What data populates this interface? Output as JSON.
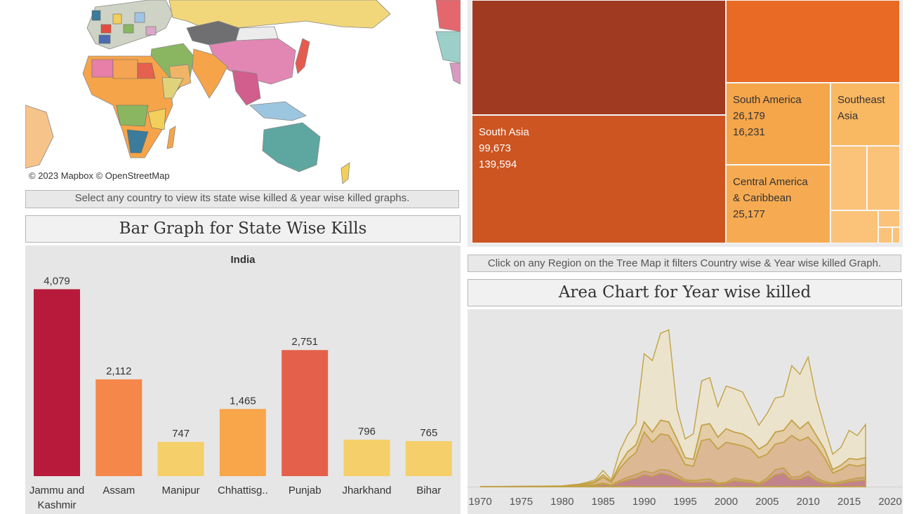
{
  "map": {
    "attribution": "© 2023 Mapbox  © OpenStreetMap"
  },
  "bar_note": "Select any country to view its state wise killed & year wise killed graphs.",
  "bar_title": "Bar Graph for State Wise Kills",
  "treemap": {
    "cells": [
      {
        "id": "top-left",
        "lines": [],
        "color": "#a03a20"
      },
      {
        "id": "top-right",
        "lines": [],
        "color": "#e96a24"
      },
      {
        "id": "south-asia",
        "lines": [
          "South Asia",
          "99,673",
          "139,594"
        ],
        "color": "#cc5522"
      },
      {
        "id": "south-america",
        "lines": [
          "South America",
          "26,179",
          "16,231"
        ],
        "color": "#f5a54a"
      },
      {
        "id": "southeast-asia",
        "lines": [
          "Southeast",
          "Asia"
        ],
        "color": "#f9b862"
      },
      {
        "id": "central-america",
        "lines": [
          "Central America",
          "& Caribbean",
          "25,177"
        ],
        "color": "#f6ab52"
      },
      {
        "id": "small-1",
        "lines": [],
        "color": "#fbc37a"
      },
      {
        "id": "small-2",
        "lines": [],
        "color": "#fbc37a"
      },
      {
        "id": "small-3",
        "lines": [],
        "color": "#fbc37a"
      },
      {
        "id": "small-4",
        "lines": [],
        "color": "#fbc37a"
      },
      {
        "id": "small-5",
        "lines": [],
        "color": "#fbc37a"
      },
      {
        "id": "small-6",
        "lines": [],
        "color": "#fbc37a"
      }
    ]
  },
  "treemap_note": "Click on any Region on the Tree Map it filters Country wise & Year wise killed Graph.",
  "area_title": "Area Chart for Year wise killed",
  "chart_data": [
    {
      "type": "bar",
      "title": "India",
      "categories": [
        "Jammu and Kashmir",
        "Assam",
        "Manipur",
        "Chhattisg..",
        "Punjab",
        "Jharkhand",
        "Bihar"
      ],
      "category_lines": [
        [
          "Jammu and",
          "Kashmir"
        ],
        [
          "Assam"
        ],
        [
          "Manipur"
        ],
        [
          "Chhattisg.."
        ],
        [
          "Punjab"
        ],
        [
          "Jharkhand"
        ],
        [
          "Bihar"
        ]
      ],
      "values": [
        4079,
        2112,
        747,
        1465,
        2751,
        796,
        765
      ],
      "value_labels": [
        "4,079",
        "2,112",
        "747",
        "1,465",
        "2,751",
        "796",
        "765"
      ],
      "colors": [
        "#b71a3b",
        "#f5874a",
        "#f4cf6a",
        "#f9a54a",
        "#e4604a",
        "#f4cf6a",
        "#f4cf6a"
      ],
      "ylim": [
        0,
        4300
      ],
      "grid": false
    },
    {
      "type": "area",
      "title": "",
      "xlabel": "",
      "ylabel": "",
      "xlim": [
        1970,
        2020
      ],
      "ylim": [
        0,
        1000
      ],
      "x_ticks": [
        1970,
        1975,
        1980,
        1985,
        1990,
        1995,
        2000,
        2005,
        2010,
        2015,
        2020
      ],
      "x": [
        1970,
        1975,
        1980,
        1981,
        1982,
        1983,
        1984,
        1985,
        1986,
        1987,
        1988,
        1989,
        1990,
        1991,
        1992,
        1993,
        1994,
        1995,
        1996,
        1997,
        1998,
        1999,
        2000,
        2001,
        2002,
        2003,
        2004,
        2005,
        2006,
        2007,
        2008,
        2009,
        2010,
        2011,
        2012,
        2013,
        2014,
        2015,
        2016,
        2017
      ],
      "series": [
        {
          "values": [
            0,
            2,
            5,
            10,
            15,
            25,
            40,
            95,
            40,
            205,
            305,
            370,
            780,
            740,
            900,
            920,
            460,
            280,
            310,
            620,
            640,
            470,
            590,
            575,
            555,
            460,
            360,
            430,
            520,
            530,
            710,
            660,
            760,
            520,
            350,
            190,
            230,
            330,
            300,
            365
          ]
        },
        {
          "values": [
            0,
            1,
            3,
            6,
            10,
            18,
            30,
            70,
            30,
            130,
            205,
            245,
            380,
            320,
            390,
            380,
            280,
            170,
            160,
            360,
            370,
            290,
            340,
            320,
            310,
            280,
            220,
            250,
            320,
            330,
            390,
            340,
            380,
            300,
            220,
            100,
            125,
            165,
            160,
            170
          ]
        },
        {
          "values": [
            0,
            1,
            2,
            4,
            8,
            14,
            25,
            55,
            25,
            105,
            160,
            200,
            320,
            260,
            310,
            300,
            220,
            130,
            120,
            270,
            280,
            220,
            260,
            250,
            240,
            220,
            170,
            190,
            250,
            260,
            300,
            270,
            290,
            240,
            170,
            80,
            100,
            130,
            120,
            130
          ]
        },
        {
          "values": [
            0,
            0,
            1,
            3,
            5,
            8,
            12,
            20,
            10,
            35,
            55,
            70,
            90,
            80,
            100,
            95,
            70,
            40,
            35,
            40,
            45,
            20,
            25,
            50,
            40,
            35,
            20,
            50,
            100,
            110,
            55,
            60,
            90,
            50,
            30,
            20,
            30,
            40,
            50,
            55
          ]
        },
        {
          "values": [
            0,
            0,
            1,
            2,
            3,
            5,
            8,
            15,
            8,
            25,
            40,
            50,
            70,
            60,
            80,
            70,
            50,
            30,
            25,
            25,
            30,
            15,
            20,
            35,
            30,
            25,
            15,
            35,
            70,
            80,
            40,
            45,
            65,
            35,
            20,
            15,
            20,
            30,
            35,
            40
          ]
        }
      ],
      "fill_colors": [
        "#ece2c8",
        "#e3c8a0",
        "#dcb491",
        "#d4a09a",
        "#c07e8a"
      ],
      "line_color": "#c2a246"
    }
  ]
}
